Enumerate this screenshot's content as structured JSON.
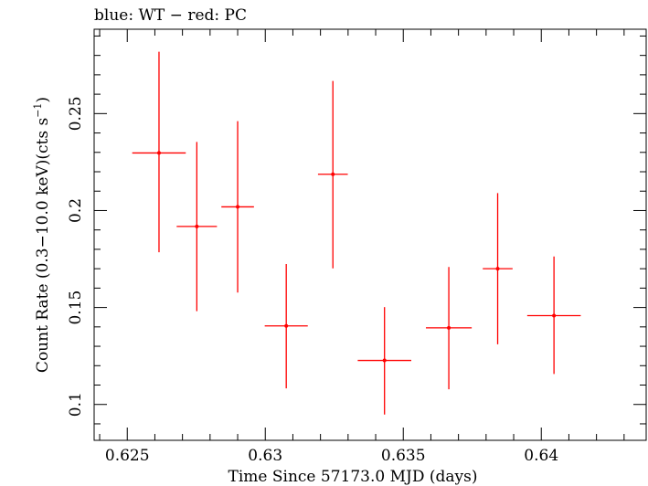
{
  "chart_data": {
    "type": "scatter",
    "title": "blue: WT − red: PC",
    "xlabel": "Time Since 57173.0 MJD (days)",
    "ylabel_main": "Count Rate (0.3−10.0 keV)(cts s",
    "ylabel_sup": "−1",
    "ylabel_close": ")",
    "xlim": [
      0.6238,
      0.6438
    ],
    "ylim": [
      0.0815,
      0.2935
    ],
    "x_ticks": [
      0.625,
      0.63,
      0.635,
      0.64
    ],
    "x_tick_labels": [
      "0.625",
      "0.63",
      "0.635",
      "0.64"
    ],
    "y_ticks": [
      0.1,
      0.15,
      0.2,
      0.25
    ],
    "y_tick_labels": [
      "0.1",
      "0.15",
      "0.2",
      "0.25"
    ],
    "grid": false,
    "series": [
      {
        "color": "#ff0000",
        "points": [
          {
            "x": 0.62615,
            "xerr": 0.00097,
            "y": 0.2297,
            "y_lo": 0.1785,
            "y_hi": 0.2819
          },
          {
            "x": 0.62752,
            "xerr": 0.00073,
            "y": 0.1918,
            "y_lo": 0.1481,
            "y_hi": 0.2354
          },
          {
            "x": 0.629,
            "xerr": 0.00059,
            "y": 0.2019,
            "y_lo": 0.1577,
            "y_hi": 0.2461
          },
          {
            "x": 0.63076,
            "xerr": 0.00078,
            "y": 0.1405,
            "y_lo": 0.1083,
            "y_hi": 0.1724
          },
          {
            "x": 0.63245,
            "xerr": 0.00054,
            "y": 0.2187,
            "y_lo": 0.1702,
            "y_hi": 0.2668
          },
          {
            "x": 0.63432,
            "xerr": 0.00097,
            "y": 0.1227,
            "y_lo": 0.0948,
            "y_hi": 0.1502
          },
          {
            "x": 0.63665,
            "xerr": 0.00083,
            "y": 0.1395,
            "y_lo": 0.1078,
            "y_hi": 0.1709
          },
          {
            "x": 0.63842,
            "xerr": 0.00054,
            "y": 0.17,
            "y_lo": 0.131,
            "y_hi": 0.209
          },
          {
            "x": 0.64046,
            "xerr": 0.00097,
            "y": 0.1458,
            "y_lo": 0.1157,
            "y_hi": 0.1763
          }
        ]
      }
    ]
  }
}
